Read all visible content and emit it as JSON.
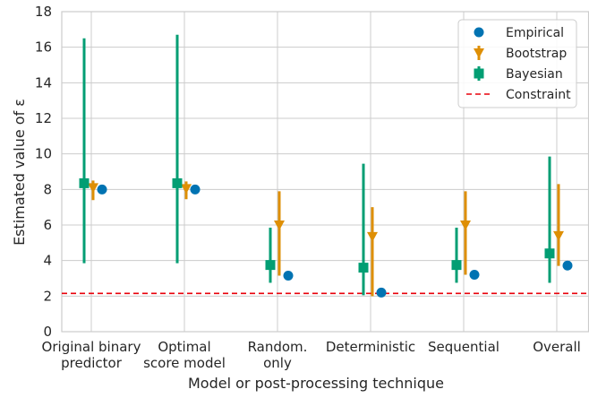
{
  "chart_data": {
    "type": "scatter",
    "title": "",
    "xlabel": "Model or post-processing technique",
    "ylabel": "Estimated value of ε",
    "ylim": [
      0,
      18
    ],
    "yticks": [
      0,
      2,
      4,
      6,
      8,
      10,
      12,
      14,
      16,
      18
    ],
    "grid": true,
    "legend_position": "top-right",
    "categories": [
      [
        "Original binary",
        "predictor"
      ],
      [
        "Optimal",
        "score model"
      ],
      [
        "Random.",
        "only"
      ],
      [
        "Deterministic"
      ],
      [
        "Sequential"
      ],
      [
        "Overall"
      ]
    ],
    "series": [
      {
        "name": "Empirical",
        "color": "#0173b2",
        "marker": "circle",
        "values": [
          8.0,
          8.0,
          3.15,
          2.2,
          3.2,
          3.72
        ]
      },
      {
        "name": "Bootstrap",
        "color": "#de8f05",
        "marker": "triangle-down",
        "values": [
          8.1,
          8.05,
          6.0,
          5.35,
          6.0,
          5.4
        ],
        "lower": [
          7.4,
          7.45,
          3.15,
          2.0,
          3.2,
          3.7
        ],
        "upper": [
          8.5,
          8.45,
          7.9,
          7.0,
          7.9,
          8.3
        ]
      },
      {
        "name": "Bayesian",
        "color": "#029e73",
        "marker": "square",
        "values": [
          8.35,
          8.35,
          3.75,
          3.6,
          3.75,
          4.4
        ],
        "lower": [
          3.85,
          3.85,
          2.75,
          2.05,
          2.75,
          2.75
        ],
        "upper": [
          16.5,
          16.7,
          5.85,
          9.45,
          5.85,
          9.85
        ]
      }
    ],
    "constraint": {
      "name": "Constraint",
      "color": "#e8000b",
      "value": 2.15
    }
  }
}
